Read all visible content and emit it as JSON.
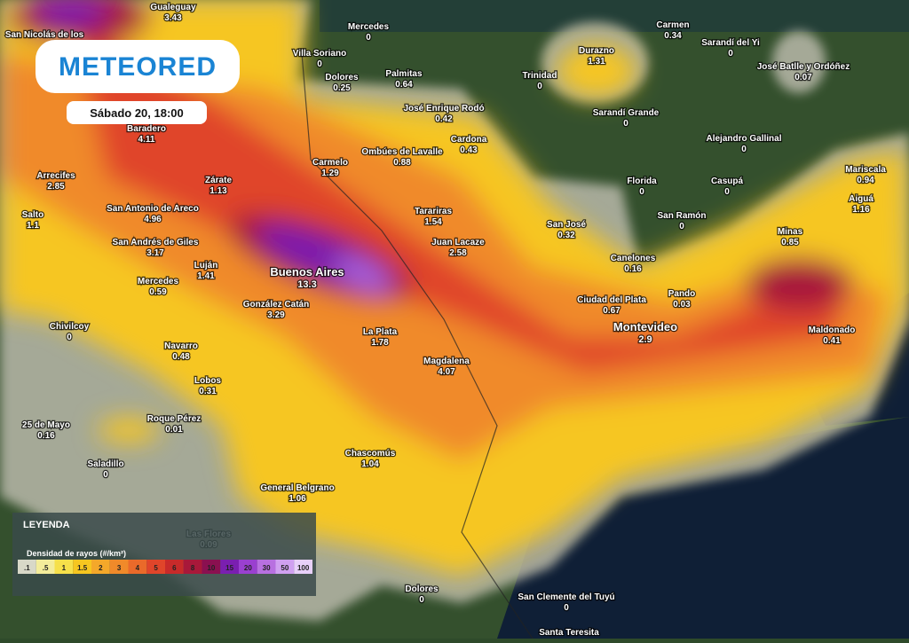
{
  "header": {
    "logo": "METEORED",
    "timestamp": "Sábado 20, 18:00"
  },
  "cities": [
    {
      "name": "Gualeguay",
      "value": 3.43
    },
    {
      "name": "San Nicolás de los"
    },
    {
      "name": "Mercedes",
      "value": 0
    },
    {
      "name": "Carmen",
      "value": 0.34
    },
    {
      "name": "Sarandí del Yi",
      "value": 0
    },
    {
      "name": "Villa Soriano",
      "value": 0
    },
    {
      "name": "Durazno",
      "value": 1.31
    },
    {
      "name": "José Batlle y Ordóñez",
      "value": 0.07
    },
    {
      "name": "Dolores",
      "value": 0.25
    },
    {
      "name": "Palmitas",
      "value": 0.64
    },
    {
      "name": "Trinidad",
      "value": 0
    },
    {
      "name": "José Enrique Rodó",
      "value": 0.42
    },
    {
      "name": "Sarandí Grande",
      "value": 0
    },
    {
      "name": "Baradero",
      "value": 4.11
    },
    {
      "name": "Cardona",
      "value": 0.43
    },
    {
      "name": "Alejandro Gallinal",
      "value": 0
    },
    {
      "name": "Ombúes de Lavalle",
      "value": 0.88
    },
    {
      "name": "Carmelo",
      "value": 1.29
    },
    {
      "name": "Mariscala",
      "value": 0.94
    },
    {
      "name": "Arrecifes",
      "value": 2.85
    },
    {
      "name": "Zárate",
      "value": 1.13
    },
    {
      "name": "Florida",
      "value": 0
    },
    {
      "name": "Casupá",
      "value": 0
    },
    {
      "name": "Aiguá",
      "value": 1.16
    },
    {
      "name": "San Antonio de Areco",
      "value": 4.96
    },
    {
      "name": "Tarariras",
      "value": 1.54
    },
    {
      "name": "Salto",
      "value": 1.1
    },
    {
      "name": "San Ramón",
      "value": 0
    },
    {
      "name": "San José",
      "value": 0.32
    },
    {
      "name": "Minas",
      "value": 0.85
    },
    {
      "name": "San Andrés de Giles",
      "value": 3.17
    },
    {
      "name": "Juan Lacaze",
      "value": 2.58
    },
    {
      "name": "Luján",
      "value": 1.41
    },
    {
      "name": "Canelones",
      "value": 0.16
    },
    {
      "name": "Buenos Aires",
      "value": 13.3
    },
    {
      "name": "Mercedes",
      "value": 0.59
    },
    {
      "name": "Pando",
      "value": 0.03
    },
    {
      "name": "Ciudad del Plata",
      "value": 0.67
    },
    {
      "name": "González Catán",
      "value": 3.29
    },
    {
      "name": "Chivilcoy",
      "value": 0
    },
    {
      "name": "Montevideo",
      "value": 2.9
    },
    {
      "name": "La Plata",
      "value": 1.78
    },
    {
      "name": "Maldonado",
      "value": 0.41
    },
    {
      "name": "Navarro",
      "value": 0.48
    },
    {
      "name": "Magdalena",
      "value": 4.07
    },
    {
      "name": "Lobos",
      "value": 0.31
    },
    {
      "name": "Roque Pérez",
      "value": 0.01
    },
    {
      "name": "25 de Mayo",
      "value": 0.16
    },
    {
      "name": "Chascomús",
      "value": 1.04
    },
    {
      "name": "Saladillo",
      "value": 0
    },
    {
      "name": "General Belgrano",
      "value": 1.06
    },
    {
      "name": "Las Flores",
      "value": 0.09
    },
    {
      "name": "Dolores",
      "value": 0
    },
    {
      "name": "San Clemente del Tuyú",
      "value": 0
    },
    {
      "name": "Santa Teresita"
    }
  ],
  "legend": {
    "title": "LEYENDA",
    "subtitle": "Densidad de rayos (#/km²)",
    "ticks": [
      {
        "value": 0.1,
        "label": ".1"
      },
      {
        "value": 0.5,
        "label": ".5"
      },
      1,
      1.5,
      2,
      3,
      4,
      5,
      6,
      8,
      10,
      15,
      20,
      30,
      50,
      100
    ]
  }
}
